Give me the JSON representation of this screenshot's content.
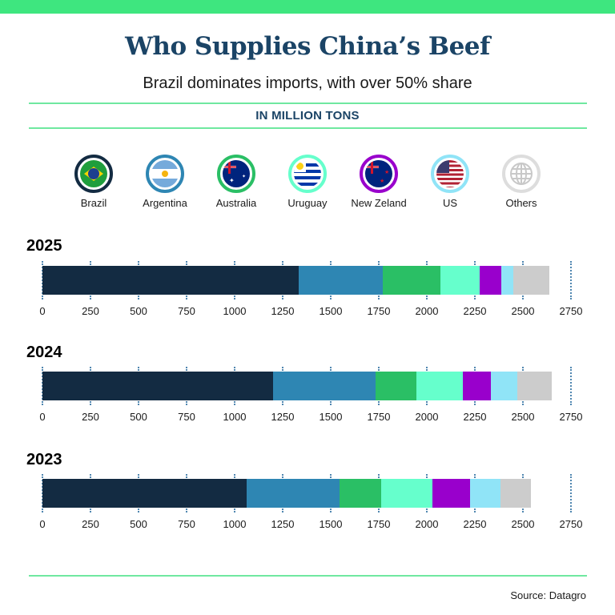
{
  "header": {
    "title": "Who Supplies China’s Beef",
    "subtitle": "Brazil dominates imports, with over 50% share",
    "unit_label": "IN MILLION TONS"
  },
  "colors": {
    "accent_band": "#3ee67f",
    "rule": "#6fe8a0",
    "title": "#1b4466",
    "Brazil": "#132b42",
    "Argentina": "#2e86b3",
    "Australia": "#2abf65",
    "Uruguay": "#66ffcc",
    "New Zeland": "#9900cc",
    "US": "#90e4f7",
    "Others": "#cccccc"
  },
  "legend": [
    {
      "label": "Brazil",
      "icon": "brazil-flag-icon",
      "color": "#132b42"
    },
    {
      "label": "Argentina",
      "icon": "argentina-flag-icon",
      "color": "#2e86b3"
    },
    {
      "label": "Australia",
      "icon": "australia-flag-icon",
      "color": "#2abf65"
    },
    {
      "label": "Uruguay",
      "icon": "uruguay-flag-icon",
      "color": "#66ffcc"
    },
    {
      "label": "New Zeland",
      "icon": "new-zealand-flag-icon",
      "color": "#9900cc"
    },
    {
      "label": "US",
      "icon": "us-flag-icon",
      "color": "#90e4f7"
    },
    {
      "label": "Others",
      "icon": "globe-icon",
      "color": "#cccccc"
    }
  ],
  "footer": {
    "source": "Source: Datagro"
  },
  "chart_data": {
    "type": "bar",
    "orientation": "horizontal",
    "stacked": true,
    "title": "Who Supplies China’s Beef",
    "subtitle": "Brazil dominates imports, with over 50% share",
    "unit": "IN MILLION TONS",
    "categories": [
      "2025",
      "2024",
      "2023"
    ],
    "series": [
      {
        "name": "Brazil",
        "values": [
          1333,
          1200,
          1062
        ]
      },
      {
        "name": "Argentina",
        "values": [
          438,
          533,
          484
        ]
      },
      {
        "name": "Australia",
        "values": [
          300,
          213,
          217
        ]
      },
      {
        "name": "Uruguay",
        "values": [
          204,
          241,
          266
        ]
      },
      {
        "name": "New Zeland",
        "values": [
          112,
          146,
          196
        ]
      },
      {
        "name": "US",
        "values": [
          63,
          138,
          158
        ]
      },
      {
        "name": "Others",
        "values": [
          187,
          179,
          159
        ]
      }
    ],
    "totals": [
      2637,
      2650,
      2542
    ],
    "xlim": [
      0,
      2750
    ],
    "xticks": [
      0,
      250,
      500,
      750,
      1000,
      1250,
      1500,
      1750,
      2000,
      2250,
      2500,
      2750
    ],
    "grid": "dotted vertical tick marks",
    "legend_position": "top",
    "source": "Source: Datagro"
  }
}
